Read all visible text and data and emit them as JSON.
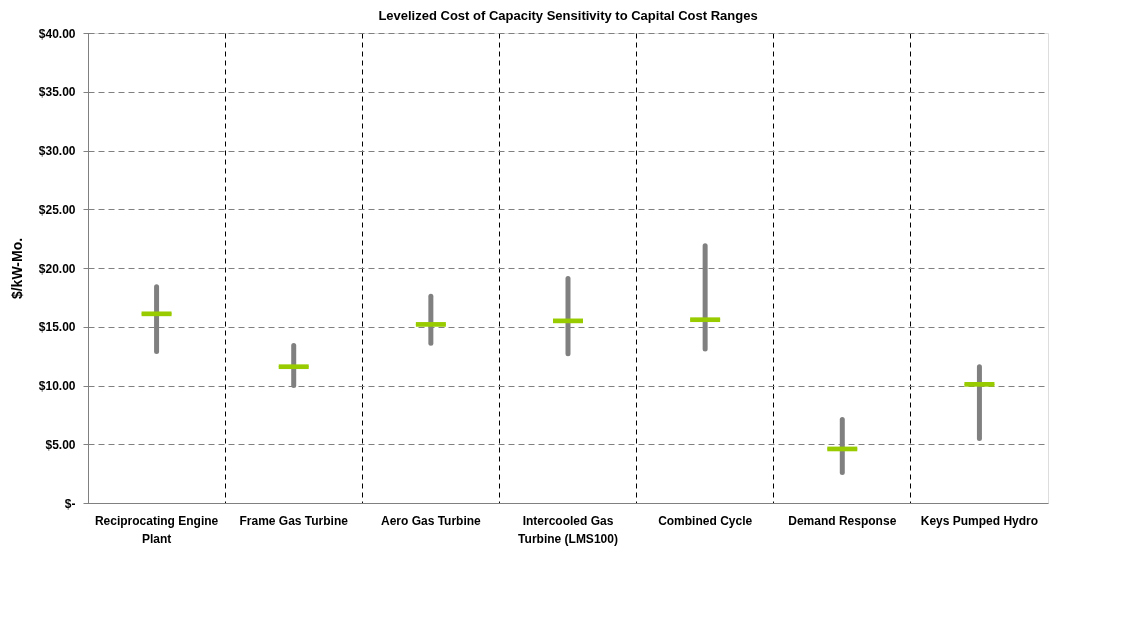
{
  "chart_data": {
    "type": "box",
    "title": "Levelized Cost of Capacity Sensitivity to Capital Cost Ranges",
    "ylabel": "$/kW-Mo.",
    "categories": [
      "Reciprocating Engine Plant",
      "Frame Gas Turbine",
      "Aero Gas Turbine",
      "Intercooled Gas Turbine (LMS100)",
      "Combined Cycle",
      "Demand Response",
      "Keys Pumped Hydro"
    ],
    "series": [
      {
        "color": "#808080",
        "colors": [
          "#99cc00",
          "#99cc00",
          "#99cc00",
          "#99cc00",
          "#99cc00",
          "#99cc00",
          "#99cc00"
        ],
        "boxes": [
          {
            "low": 12.9,
            "q1": 15.9,
            "median": 16.1,
            "q3": 16.3,
            "high": 18.4
          },
          {
            "low": 10.0,
            "q1": 11.4,
            "median": 11.6,
            "q3": 11.8,
            "high": 13.4
          },
          {
            "low": 13.6,
            "q1": 15.0,
            "median": 15.2,
            "q3": 15.4,
            "high": 17.6
          },
          {
            "low": 12.7,
            "q1": 15.3,
            "median": 15.5,
            "q3": 15.7,
            "high": 19.1
          },
          {
            "low": 13.1,
            "q1": 15.4,
            "median": 15.6,
            "q3": 15.8,
            "high": 21.9
          },
          {
            "low": 2.6,
            "q1": 4.4,
            "median": 4.6,
            "q3": 4.8,
            "high": 7.1
          },
          {
            "low": 5.5,
            "q1": 9.9,
            "median": 10.1,
            "q3": 10.3,
            "high": 11.6
          }
        ]
      }
    ],
    "ylim": [
      0,
      40
    ],
    "yticks": [
      {
        "value": 0,
        "label": "$-"
      },
      {
        "value": 5,
        "label": "$5.00"
      },
      {
        "value": 10,
        "label": "$10.00"
      },
      {
        "value": 15,
        "label": "$15.00"
      },
      {
        "value": 20,
        "label": "$20.00"
      },
      {
        "value": 25,
        "label": "$25.00"
      },
      {
        "value": 30,
        "label": "$30.00"
      },
      {
        "value": 35,
        "label": "$35.00"
      },
      {
        "value": 40,
        "label": "$40.00"
      }
    ],
    "grid": true
  }
}
